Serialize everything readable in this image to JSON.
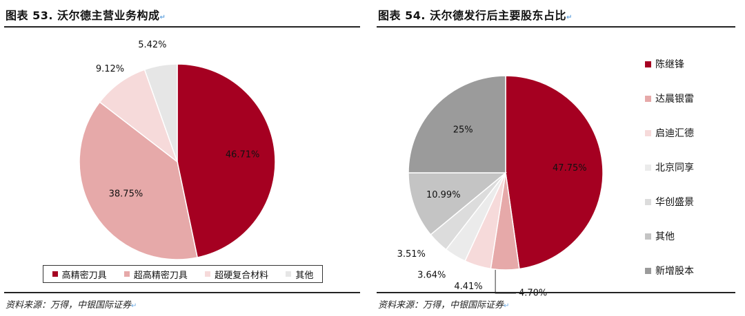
{
  "left": {
    "title": "图表 53. 沃尔德主营业务构成",
    "source": "资料来源：万得，中银国际证券"
  },
  "right": {
    "title": "图表 54. 沃尔德发行后主要股东占比",
    "source": "资料来源：万得，中银国际证券"
  },
  "chart_data": [
    {
      "type": "pie",
      "title": "",
      "legend_position": "bottom",
      "slices": [
        {
          "name": "高精密刀具",
          "value": 46.71,
          "label": "46.71%",
          "color": "#A50021"
        },
        {
          "name": "超高精密刀具",
          "value": 38.75,
          "label": "38.75%",
          "color": "#E6A9A9"
        },
        {
          "name": "超硬复合材料",
          "value": 9.12,
          "label": "9.12%",
          "color": "#F6DADA"
        },
        {
          "name": "其他",
          "value": 5.42,
          "label": "5.42%",
          "color": "#E6E6E6"
        }
      ]
    },
    {
      "type": "pie",
      "title": "",
      "legend_position": "right",
      "slices": [
        {
          "name": "陈继锋",
          "value": 47.75,
          "label": "47.75%",
          "color": "#A50021"
        },
        {
          "name": "达晨银雷",
          "value": 4.7,
          "label": "4.70%",
          "color": "#E6A9A9"
        },
        {
          "name": "启迪汇德",
          "value": 4.41,
          "label": "4.41%",
          "color": "#F6DADA"
        },
        {
          "name": "北京同享",
          "value": 3.64,
          "label": "3.64%",
          "color": "#EBEBEB"
        },
        {
          "name": "华创盛景",
          "value": 3.51,
          "label": "3.51%",
          "color": "#DCDCDC"
        },
        {
          "name": "其他",
          "value": 10.99,
          "label": "10.99%",
          "color": "#C4C4C4"
        },
        {
          "name": "新增股本",
          "value": 25,
          "label": "25%",
          "color": "#9B9B9B"
        }
      ]
    }
  ]
}
